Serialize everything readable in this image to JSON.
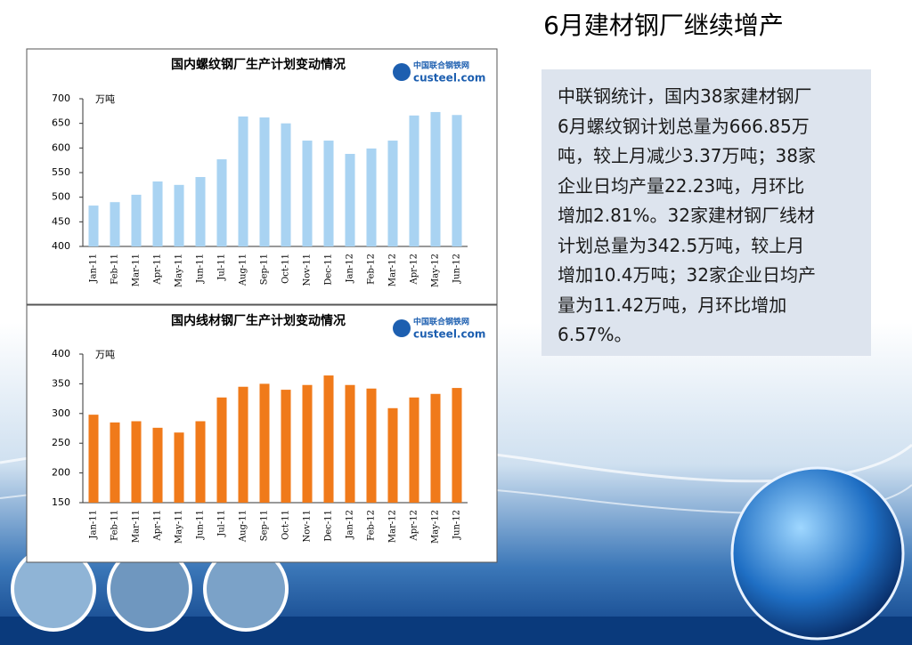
{
  "slide": {
    "title": "6月建材钢厂继续增产",
    "text_lines": [
      "中联钢统计，国内38家建材钢厂",
      "6月螺纹钢计划总量为666.85万",
      "吨，较上月减少3.37万吨；38家",
      "企业日均产量22.23吨，月环比",
      "增加2.81%。32家建材钢厂线材",
      "计划总量为342.5万吨，较上月",
      "增加10.4万吨；32家企业日均产",
      "量为11.42万吨，月环比增加",
      "6.57%。"
    ]
  },
  "chart_data": [
    {
      "type": "bar",
      "title": "国内螺纹钢厂生产计划变动情况",
      "y_label": "万吨",
      "logo_cn": "中国联合钢铁网",
      "logo_en": "custeel.com",
      "categories": [
        "Jan-11",
        "Feb-11",
        "Mar-11",
        "Apr-11",
        "May-11",
        "Jun-11",
        "Jul-11",
        "Aug-11",
        "Sep-11",
        "Oct-11",
        "Nov-11",
        "Dec-11",
        "Jan-12",
        "Feb-12",
        "Mar-12",
        "Apr-12",
        "May-12",
        "Jun-12"
      ],
      "values": [
        483,
        490,
        505,
        532,
        525,
        541,
        577,
        664,
        662,
        650,
        615,
        615,
        588,
        599,
        615,
        666,
        673,
        667
      ],
      "color": "#a9d3f2",
      "ylim": [
        400,
        700
      ],
      "yticks": [
        400,
        450,
        500,
        550,
        600,
        650,
        700
      ],
      "grid": false
    },
    {
      "type": "bar",
      "title": "国内线材钢厂生产计划变动情况",
      "y_label": "万吨",
      "logo_cn": "中国联合钢铁网",
      "logo_en": "custeel.com",
      "categories": [
        "Jan-11",
        "Feb-11",
        "Mar-11",
        "Apr-11",
        "May-11",
        "Jun-11",
        "Jul-11",
        "Aug-11",
        "Sep-11",
        "Oct-11",
        "Nov-11",
        "Dec-11",
        "Jan-12",
        "Feb-12",
        "Mar-12",
        "Apr-12",
        "May-12",
        "Jun-12"
      ],
      "values": [
        298,
        285,
        287,
        276,
        268,
        287,
        327,
        345,
        350,
        340,
        348,
        364,
        348,
        342,
        309,
        327,
        333,
        343
      ],
      "color": "#f07a1a",
      "ylim": [
        150,
        400
      ],
      "yticks": [
        150,
        200,
        250,
        300,
        350,
        400
      ],
      "grid": false
    }
  ]
}
